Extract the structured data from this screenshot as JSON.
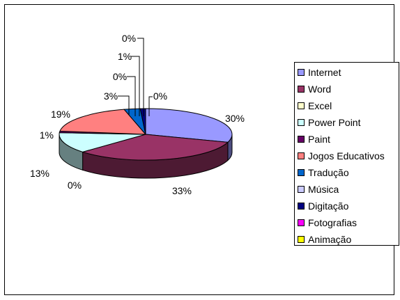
{
  "chart_data": {
    "type": "pie",
    "title": "",
    "categories": [
      "Internet",
      "Word",
      "Excel",
      "Power Point",
      "Paint",
      "Jogos Educativos",
      "Tradução",
      "Música",
      "Digitação",
      "Fotografias",
      "Animação"
    ],
    "values": [
      30,
      33,
      0,
      13,
      1,
      19,
      3,
      0,
      1,
      0,
      0
    ],
    "value_labels": [
      "30%",
      "33%",
      "0%",
      "13%",
      "1%",
      "19%",
      "3%",
      "0%",
      "1%",
      "0%",
      "0%"
    ],
    "colors": [
      "#9999FF",
      "#993366",
      "#FFFFCC",
      "#CCFFFF",
      "#660066",
      "#FF8080",
      "#0066CC",
      "#CCCCFF",
      "#000080",
      "#FF00FF",
      "#FFFF00"
    ],
    "legend_position": "right",
    "style": "3d-pie"
  }
}
